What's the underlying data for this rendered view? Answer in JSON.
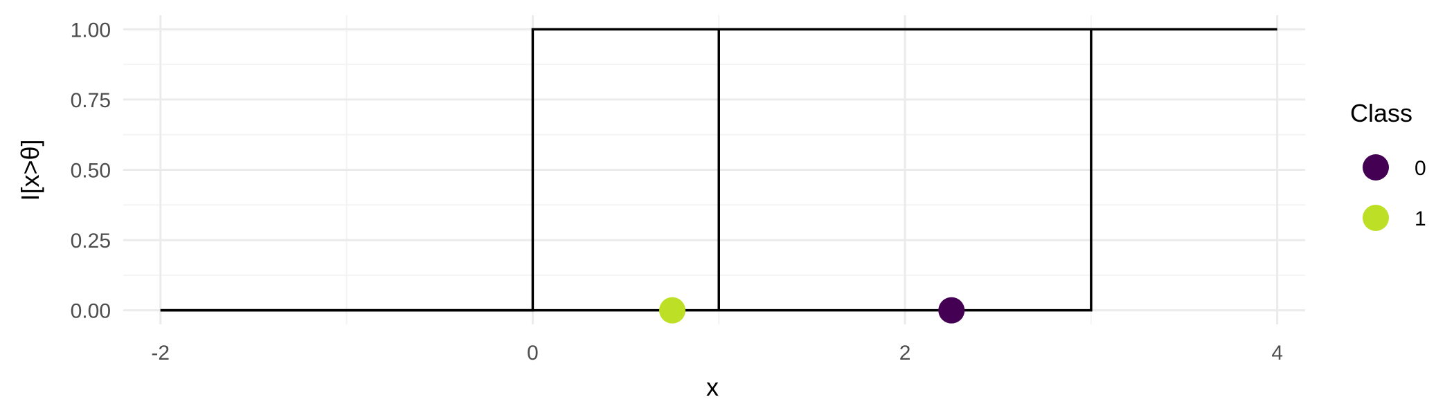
{
  "chart_data": {
    "type": "line",
    "xlabel": "x",
    "ylabel": "I[x>θ]",
    "xlim": [
      -2.2,
      4.15
    ],
    "ylim": [
      -0.05,
      1.05
    ],
    "x_ticks": [
      -2,
      0,
      2,
      4
    ],
    "x_minor_ticks": [
      -1,
      1,
      3
    ],
    "y_ticks": [
      0,
      0.25,
      0.5,
      0.75,
      1
    ],
    "y_minor_ticks": [
      0.125,
      0.375,
      0.625,
      0.875
    ],
    "x_tick_labels": [
      "-2",
      "0",
      "2",
      "4"
    ],
    "y_tick_labels": [
      "0.00",
      "0.25",
      "0.50",
      "0.75",
      "1.00"
    ],
    "grid": true,
    "line_series": [
      {
        "x": [
          -2,
          0,
          0,
          4
        ],
        "y": [
          0,
          0,
          1,
          1
        ]
      },
      {
        "x": [
          1,
          1
        ],
        "y": [
          0,
          1
        ]
      },
      {
        "x": [
          -2,
          3,
          3
        ],
        "y": [
          0,
          0,
          1
        ]
      }
    ],
    "points": [
      {
        "x": 0.75,
        "y": 0,
        "class": "1"
      },
      {
        "x": 2.25,
        "y": 0,
        "class": "0"
      }
    ],
    "legend": {
      "title": "Class",
      "position": "right",
      "items": [
        {
          "label": "0",
          "color": "#440154"
        },
        {
          "label": "1",
          "color": "#BDDF26"
        }
      ]
    },
    "colors": {
      "line": "#000000",
      "grid_major": "#ebebeb",
      "grid_minor": "#f4f4f4",
      "class_0": "#440154",
      "class_1": "#BDDF26"
    }
  }
}
